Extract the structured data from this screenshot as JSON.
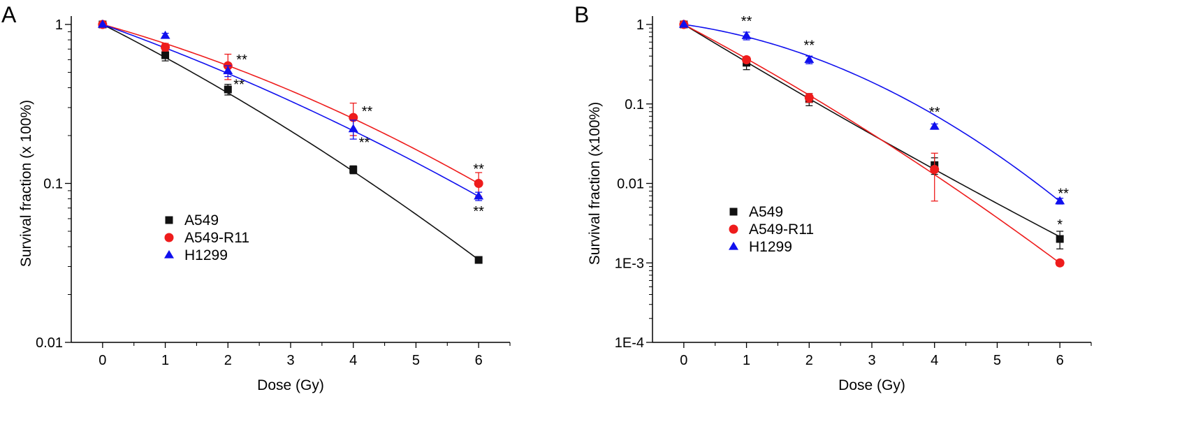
{
  "colors": {
    "A549": "#111111",
    "A549-R11": "#ee1c1c",
    "H1299": "#1010ee",
    "axis": "#000000"
  },
  "chart_data": [
    {
      "type": "scatter",
      "panel_label": "A",
      "xlabel": "Dose (Gy)",
      "ylabel": "Survival fraction (x 100%)",
      "xlim": [
        -0.5,
        6.5
      ],
      "ylim": [
        0.01,
        1
      ],
      "yscale": "log",
      "x_ticks": [
        "0",
        "1",
        "2",
        "3",
        "4",
        "5",
        "6"
      ],
      "y_ticks": [
        {
          "value": 1,
          "label": "1"
        },
        {
          "value": 0.1,
          "label": "0.1"
        },
        {
          "value": 0.01,
          "label": "0.01"
        }
      ],
      "grid": false,
      "legend_position": "center-left",
      "series": [
        {
          "name": "A549",
          "marker": "square",
          "color_key": "A549",
          "points": [
            {
              "x": 0,
              "y": 1.0,
              "err": 0.0
            },
            {
              "x": 1,
              "y": 0.64,
              "err": 0.05
            },
            {
              "x": 2,
              "y": 0.39,
              "err": 0.03
            },
            {
              "x": 4,
              "y": 0.122,
              "err": 0.007
            },
            {
              "x": 6,
              "y": 0.033,
              "err": 0.001
            }
          ],
          "fit": {
            "alpha": 0.46,
            "beta": 0.018
          }
        },
        {
          "name": "A549-R11",
          "marker": "circle",
          "color_key": "A549-R11",
          "points": [
            {
              "x": 0,
              "y": 1.0,
              "err": 0.0
            },
            {
              "x": 1,
              "y": 0.72,
              "err": 0.04
            },
            {
              "x": 2,
              "y": 0.55,
              "err": 0.1
            },
            {
              "x": 4,
              "y": 0.26,
              "err": 0.06
            },
            {
              "x": 6,
              "y": 0.1,
              "err": 0.017
            }
          ],
          "fit": {
            "alpha": 0.255,
            "beta": 0.0215
          }
        },
        {
          "name": "H1299",
          "marker": "triangle",
          "color_key": "H1299",
          "points": [
            {
              "x": 0,
              "y": 1.0,
              "err": 0.0
            },
            {
              "x": 1,
              "y": 0.85,
              "err": 0.03
            },
            {
              "x": 2,
              "y": 0.51,
              "err": 0.04
            },
            {
              "x": 4,
              "y": 0.22,
              "err": 0.03
            },
            {
              "x": 6,
              "y": 0.083,
              "err": 0.005
            }
          ],
          "fit": {
            "alpha": 0.325,
            "beta": 0.015
          }
        }
      ],
      "annotations": [
        {
          "text": "**",
          "x": 2,
          "y": 0.55,
          "color_key": "axis",
          "pos": "right-up"
        },
        {
          "text": "**",
          "x": 2,
          "y": 0.51,
          "color_key": "axis",
          "pos": "right-down"
        },
        {
          "text": "**",
          "x": 4,
          "y": 0.26,
          "color_key": "axis",
          "pos": "right-up"
        },
        {
          "text": "**",
          "x": 4,
          "y": 0.22,
          "color_key": "axis",
          "pos": "right-down"
        },
        {
          "text": "**",
          "x": 6,
          "y": 0.1,
          "color_key": "axis",
          "pos": "above"
        },
        {
          "text": "**",
          "x": 6,
          "y": 0.083,
          "color_key": "axis",
          "pos": "below"
        }
      ]
    },
    {
      "type": "scatter",
      "panel_label": "B",
      "xlabel": "Dose (Gy)",
      "ylabel": "Survival fraction (x100%)",
      "xlim": [
        -0.5,
        6.5
      ],
      "ylim": [
        0.0001,
        1
      ],
      "yscale": "log",
      "x_ticks": [
        "0",
        "1",
        "2",
        "3",
        "4",
        "5",
        "6"
      ],
      "y_ticks": [
        {
          "value": 1,
          "label": "1"
        },
        {
          "value": 0.1,
          "label": "0.1"
        },
        {
          "value": 0.01,
          "label": "0.01"
        },
        {
          "value": 0.001,
          "label": "1E-3"
        },
        {
          "value": 0.0001,
          "label": "1E-4"
        }
      ],
      "grid": false,
      "legend_position": "center-left",
      "series": [
        {
          "name": "A549",
          "marker": "square",
          "color_key": "A549",
          "points": [
            {
              "x": 0,
              "y": 1.0,
              "err": 0.0
            },
            {
              "x": 1,
              "y": 0.33,
              "err": 0.06
            },
            {
              "x": 2,
              "y": 0.115,
              "err": 0.02
            },
            {
              "x": 4,
              "y": 0.017,
              "err": 0.004
            },
            {
              "x": 6,
              "y": 0.002,
              "err": 0.0005
            }
          ],
          "fit": {
            "alpha": 1.1,
            "beta": -0.0125
          }
        },
        {
          "name": "A549-R11",
          "marker": "circle",
          "color_key": "A549-R11",
          "points": [
            {
              "x": 0,
              "y": 1.0,
              "err": 0.0
            },
            {
              "x": 1,
              "y": 0.36,
              "err": 0.03
            },
            {
              "x": 2,
              "y": 0.12,
              "err": 0.015
            },
            {
              "x": 4,
              "y": 0.015,
              "err": 0.009
            },
            {
              "x": 6,
              "y": 0.001,
              "err": 8e-05
            }
          ],
          "fit": {
            "alpha": 0.96,
            "beta": 0.032
          }
        },
        {
          "name": "H1299",
          "marker": "triangle",
          "color_key": "H1299",
          "points": [
            {
              "x": 0,
              "y": 1.0,
              "err": 0.0
            },
            {
              "x": 1,
              "y": 0.72,
              "err": 0.08
            },
            {
              "x": 2,
              "y": 0.36,
              "err": 0.04
            },
            {
              "x": 4,
              "y": 0.052,
              "err": 0.004
            },
            {
              "x": 6,
              "y": 0.006,
              "err": 0.0005
            }
          ],
          "fit": {
            "alpha": 0.26,
            "beta": 0.099
          }
        }
      ],
      "annotations": [
        {
          "text": "**",
          "x": 1,
          "y": 0.72,
          "color_key": "axis",
          "pos": "above"
        },
        {
          "text": "**",
          "x": 2,
          "y": 0.36,
          "color_key": "axis",
          "pos": "above"
        },
        {
          "text": "**",
          "x": 4,
          "y": 0.052,
          "color_key": "axis",
          "pos": "above"
        },
        {
          "text": "**",
          "x": 6,
          "y": 0.006,
          "color_key": "axis",
          "pos": "above-right"
        },
        {
          "text": "*",
          "x": 6,
          "y": 0.002,
          "color_key": "axis",
          "pos": "above"
        }
      ]
    }
  ]
}
